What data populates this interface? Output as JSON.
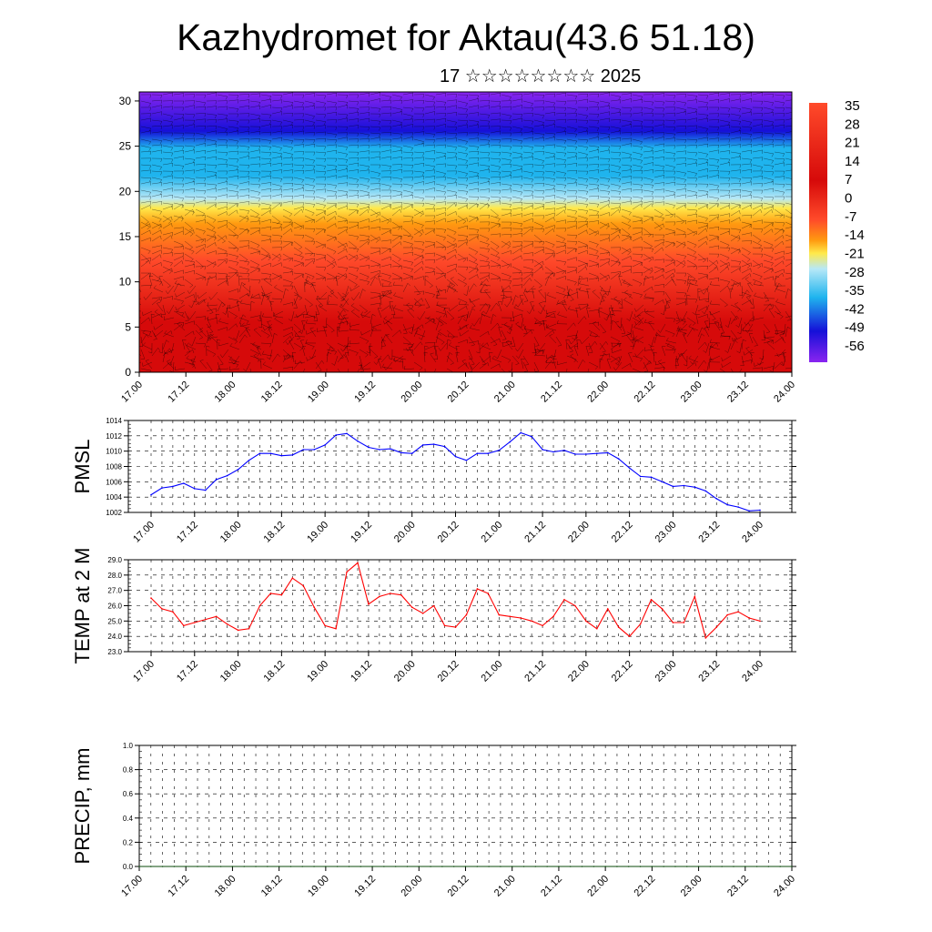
{
  "header": {
    "title": "Kazhydromet for Aktau(43.6 51.18)",
    "subtitle": "17 ☆☆☆☆☆☆☆☆ 2025"
  },
  "colors": {
    "warm_top": "#ff4a2a",
    "hot": "#d60a0a",
    "orange": "#ff9a10",
    "yellow": "#ffe94a",
    "cold_light": "#b7e8f7",
    "cold_mid": "#1fb4ee",
    "deep_blue": "#1510d8",
    "violet": "#8a25f0",
    "pressure_line": "#0000ff",
    "temp_line": "#ff0000",
    "precip_line": "#0a4a0a"
  },
  "chart_data": [
    {
      "type": "heatmap",
      "title": "",
      "yticks": [
        0,
        5,
        10,
        15,
        20,
        25,
        30
      ],
      "ylim": [
        0,
        31
      ],
      "xticks": [
        "17.00",
        "17.12",
        "18.00",
        "18.12",
        "19.00",
        "19.12",
        "20.00",
        "20.12",
        "21.00",
        "21.12",
        "22.00",
        "22.12",
        "23.00",
        "23.12",
        "24.00"
      ],
      "colorbar_labels": [
        "35",
        "28",
        "21",
        "14",
        "7",
        "0",
        "-7",
        "-14",
        "-21",
        "-28",
        "-35",
        "-42",
        "-49",
        "-56"
      ],
      "overlay": "wind barbs",
      "grid": false
    },
    {
      "type": "line",
      "ylabel": "PMSL",
      "ylim": [
        1002,
        1014
      ],
      "yticks": [
        "1002",
        "1004",
        "1006",
        "1008",
        "1010",
        "1012",
        "1014"
      ],
      "xticks": [
        "17.00",
        "17.12",
        "18.00",
        "18.12",
        "19.00",
        "19.12",
        "20.00",
        "20.12",
        "21.00",
        "21.12",
        "22.00",
        "22.12",
        "23.00",
        "23.12",
        "24.00"
      ],
      "grid": true,
      "values": [
        1004.3,
        1005.2,
        1005.4,
        1005.8,
        1005.1,
        1004.9,
        1006.3,
        1006.8,
        1007.6,
        1008.8,
        1009.7,
        1009.7,
        1009.4,
        1009.5,
        1010.2,
        1010.2,
        1010.8,
        1012.1,
        1012.3,
        1011.3,
        1010.5,
        1010.2,
        1010.3,
        1009.8,
        1009.7,
        1010.8,
        1010.9,
        1010.6,
        1009.3,
        1008.8,
        1009.7,
        1009.7,
        1010.1,
        1011.2,
        1012.4,
        1011.9,
        1010.2,
        1009.9,
        1010.1,
        1009.6,
        1009.6,
        1009.7,
        1009.8,
        1009.0,
        1007.8,
        1006.7,
        1006.6,
        1006.0,
        1005.4,
        1005.5,
        1005.3,
        1004.8,
        1003.8,
        1003.0,
        1002.7,
        1002.2,
        1002.3
      ]
    },
    {
      "type": "line",
      "ylabel": "TEMP at 2 M",
      "ylim": [
        23.0,
        29.0
      ],
      "yticks": [
        "23.0",
        "24.0",
        "25.0",
        "26.0",
        "27.0",
        "28.0",
        "29.0"
      ],
      "xticks": [
        "17.00",
        "17.12",
        "18.00",
        "18.12",
        "19.00",
        "19.12",
        "20.00",
        "20.12",
        "21.00",
        "21.12",
        "22.00",
        "22.12",
        "23.00",
        "23.12",
        "24.00"
      ],
      "grid": true,
      "values": [
        26.5,
        25.8,
        25.6,
        24.7,
        24.9,
        25.1,
        25.3,
        24.8,
        24.4,
        24.5,
        26.0,
        26.8,
        26.7,
        27.8,
        27.3,
        25.9,
        24.7,
        24.5,
        28.2,
        28.8,
        26.1,
        26.6,
        26.8,
        26.7,
        25.9,
        25.5,
        26.0,
        24.7,
        24.6,
        25.4,
        27.1,
        26.8,
        25.4,
        25.3,
        25.2,
        25.0,
        24.7,
        25.3,
        26.4,
        26.0,
        25.0,
        24.5,
        25.8,
        24.6,
        24.0,
        24.8,
        26.4,
        25.8,
        24.9,
        24.9,
        26.6,
        23.9,
        24.6,
        25.4,
        25.6,
        25.2,
        25.0
      ]
    },
    {
      "type": "line",
      "ylabel": "PRECIP, mm",
      "ylim": [
        0.0,
        1.0
      ],
      "yticks": [
        "0.0",
        "0.2",
        "0.4",
        "0.6",
        "0.8",
        "1.0"
      ],
      "xticks": [
        "17.00",
        "17.12",
        "18.00",
        "18.12",
        "19.00",
        "19.12",
        "20.00",
        "20.12",
        "21.00",
        "21.12",
        "22.00",
        "22.12",
        "23.00",
        "23.12",
        "24.00"
      ],
      "grid": true,
      "values": [
        0,
        0,
        0,
        0,
        0,
        0,
        0,
        0,
        0,
        0,
        0,
        0,
        0,
        0,
        0,
        0,
        0,
        0,
        0,
        0,
        0,
        0,
        0,
        0,
        0,
        0,
        0,
        0,
        0,
        0,
        0,
        0,
        0,
        0,
        0,
        0,
        0,
        0,
        0,
        0,
        0,
        0,
        0,
        0,
        0,
        0,
        0,
        0,
        0,
        0,
        0,
        0,
        0,
        0,
        0,
        0,
        0
      ]
    }
  ]
}
